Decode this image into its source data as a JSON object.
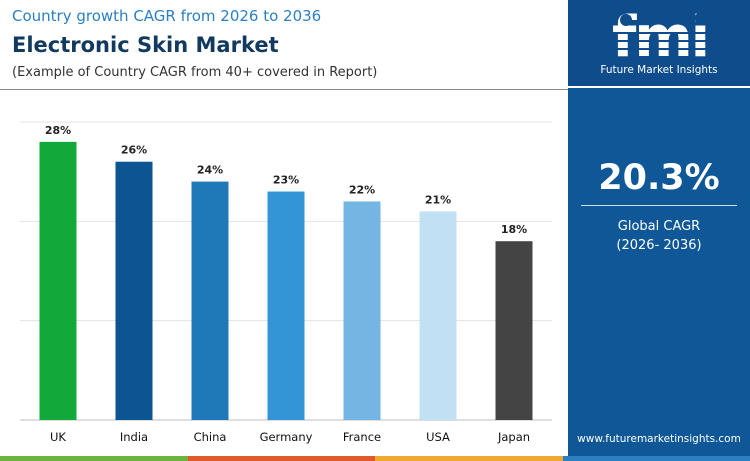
{
  "header": {
    "subtitle": "Country growth CAGR from 2026 to 2036",
    "title": "Electronic Skin Market",
    "note": "(Example of Country CAGR from 40+ covered in Report)"
  },
  "chart_data": {
    "type": "bar",
    "categories": [
      "UK",
      "India",
      "China",
      "Germany",
      "France",
      "USA",
      "Japan"
    ],
    "values": [
      28,
      26,
      24,
      23,
      22,
      21,
      18
    ],
    "value_labels": [
      "28%",
      "26%",
      "24%",
      "23%",
      "22%",
      "21%",
      "18%"
    ],
    "colors": [
      "#12a83a",
      "#0d5493",
      "#1f78b8",
      "#3394d6",
      "#74b5e4",
      "#c2e0f3",
      "#444444"
    ],
    "title": "",
    "xlabel": "",
    "ylabel": "",
    "ylim": [
      0,
      30
    ],
    "grid": true
  },
  "sidebar": {
    "logo_text": "fmi",
    "logo_tagline": "Future Market Insights",
    "kpi_value": "20.3%",
    "kpi_label": "Global CAGR",
    "kpi_period": "(2026- 2036)",
    "website": "www.futuremarketinsights.com"
  },
  "theme": {
    "accent": "#2b7fc2",
    "title_color": "#123a5f",
    "side_panel": "#0e4c8c",
    "strip_colors": [
      "#6cb33f",
      "#e05a2b",
      "#f0a830",
      "#2b7fc2"
    ]
  }
}
